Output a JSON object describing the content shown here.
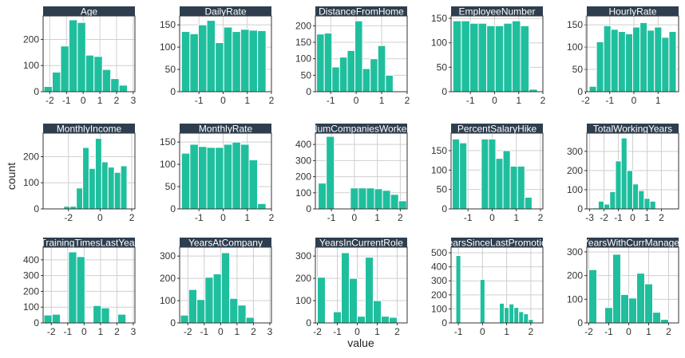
{
  "figure": {
    "xlabel": "value",
    "ylabel": "count",
    "bar_color": "#1fbf9e",
    "strip_color": "#2e3e4e",
    "strip_text_color": "#ffffff",
    "grid_color": "#cfcfcf"
  },
  "chart_data": [
    {
      "type": "bar",
      "title": "Age",
      "x": [
        -2.1,
        -1.6,
        -1.1,
        -0.6,
        -0.1,
        0.4,
        0.9,
        1.4,
        1.9,
        2.4,
        2.9
      ],
      "values": [
        20,
        75,
        175,
        275,
        265,
        140,
        135,
        85,
        50,
        25,
        0
      ],
      "xlim": [
        -2.4,
        3.1
      ],
      "ylim": [
        0,
        290
      ],
      "xticks": [
        -2,
        -1,
        0,
        1,
        2,
        3
      ],
      "yticks": [
        0,
        100,
        200
      ],
      "xticklabels": [
        "-2",
        "-1",
        "0",
        "1",
        "2",
        "3"
      ],
      "yticklabels": [
        "0",
        "100",
        "200"
      ]
    },
    {
      "type": "bar",
      "title": "DailyRate",
      "x": [
        -1.55,
        -1.2,
        -0.85,
        -0.5,
        -0.15,
        0.2,
        0.55,
        0.9,
        1.25,
        1.6
      ],
      "values": [
        135,
        130,
        150,
        160,
        110,
        145,
        135,
        140,
        138,
        137
      ],
      "xlim": [
        -1.8,
        2.0
      ],
      "ylim": [
        0,
        170
      ],
      "xticks": [
        -1,
        0,
        1,
        2
      ],
      "yticks": [
        0,
        50,
        100,
        150
      ],
      "xticklabels": [
        "-1",
        "0",
        "1",
        "2"
      ],
      "yticklabels": [
        "0",
        "50",
        "100",
        "150"
      ]
    },
    {
      "type": "bar",
      "title": "DistanceFromHome",
      "x": [
        -1.4,
        -1.1,
        -0.8,
        -0.5,
        -0.2,
        0.1,
        0.4,
        0.7,
        1.0,
        1.3,
        1.6,
        1.9
      ],
      "values": [
        175,
        178,
        75,
        105,
        125,
        215,
        70,
        100,
        140,
        50,
        0,
        0
      ],
      "xlim": [
        -1.6,
        2.0
      ],
      "ylim": [
        0,
        230
      ],
      "xticks": [
        -1,
        0,
        1,
        2
      ],
      "yticks": [
        0,
        50,
        100,
        150,
        200
      ],
      "xticklabels": [
        "-1",
        "0",
        "1",
        "2"
      ],
      "yticklabels": [
        "0",
        "50",
        "100",
        "150",
        "200"
      ]
    },
    {
      "type": "bar",
      "title": "EmployeeNumber",
      "x": [
        -1.55,
        -1.2,
        -0.85,
        -0.5,
        -0.15,
        0.2,
        0.55,
        0.9,
        1.25,
        1.6
      ],
      "values": [
        145,
        145,
        140,
        140,
        135,
        135,
        140,
        145,
        135,
        5
      ],
      "xlim": [
        -1.8,
        2.0
      ],
      "ylim": [
        0,
        155
      ],
      "xticks": [
        -1,
        0,
        1,
        2
      ],
      "yticks": [
        0,
        50,
        100,
        150
      ],
      "xticklabels": [
        "-1",
        "0",
        "1",
        "2"
      ],
      "yticklabels": [
        "0",
        "50",
        "100",
        "150"
      ]
    },
    {
      "type": "bar",
      "title": "HourlyRate",
      "x": [
        -1.7,
        -1.4,
        -1.1,
        -0.8,
        -0.5,
        -0.2,
        0.1,
        0.4,
        0.7,
        1.0,
        1.3,
        1.6
      ],
      "values": [
        12,
        112,
        148,
        140,
        135,
        130,
        145,
        155,
        138,
        145,
        122,
        135
      ],
      "xlim": [
        -1.95,
        1.85
      ],
      "ylim": [
        0,
        170
      ],
      "xticks": [
        -2,
        -1,
        0,
        1
      ],
      "yticks": [
        0,
        50,
        100,
        150
      ],
      "xticklabels": [
        "-2",
        "-1",
        "0",
        "1"
      ],
      "yticklabels": [
        "0",
        "50",
        "100",
        "150"
      ]
    },
    {
      "type": "bar",
      "title": "MonthlyIncome",
      "x": [
        -2.9,
        -2.5,
        -2.1,
        -1.7,
        -1.3,
        -0.9,
        -0.5,
        -0.1,
        0.3,
        0.7,
        1.1,
        1.5,
        1.9
      ],
      "values": [
        0,
        0,
        10,
        10,
        80,
        235,
        155,
        270,
        180,
        160,
        140,
        165,
        0
      ],
      "xlim": [
        -3.6,
        2.2
      ],
      "ylim": [
        0,
        290
      ],
      "xticks": [
        -2,
        0,
        2
      ],
      "yticks": [
        0,
        100,
        200
      ],
      "xticklabels": [
        "-2",
        "0",
        "2"
      ],
      "yticklabels": [
        "0",
        "100",
        "200"
      ]
    },
    {
      "type": "bar",
      "title": "MonthlyRate",
      "x": [
        -1.55,
        -1.2,
        -0.85,
        -0.5,
        -0.15,
        0.2,
        0.55,
        0.9,
        1.25,
        1.6
      ],
      "values": [
        125,
        145,
        140,
        138,
        138,
        145,
        150,
        145,
        110,
        12
      ],
      "xlim": [
        -1.8,
        2.0
      ],
      "ylim": [
        0,
        170
      ],
      "xticks": [
        -1,
        0,
        1,
        2
      ],
      "yticks": [
        0,
        50,
        100,
        150
      ],
      "xticklabels": [
        "-1",
        "0",
        "1",
        "2"
      ],
      "yticklabels": [
        "0",
        "50",
        "100",
        "150"
      ]
    },
    {
      "type": "bar",
      "title": "NumCompaniesWorked",
      "x": [
        -1.4,
        -1.05,
        -0.7,
        -0.35,
        0.0,
        0.35,
        0.7,
        1.05,
        1.4,
        1.75,
        2.1
      ],
      "values": [
        160,
        450,
        0,
        0,
        130,
        130,
        130,
        125,
        115,
        90,
        50
      ],
      "xlim": [
        -1.7,
        2.3
      ],
      "ylim": [
        0,
        470
      ],
      "xticks": [
        -1,
        0,
        1,
        2
      ],
      "yticks": [
        0,
        100,
        200,
        300,
        400
      ],
      "xticklabels": [
        "-1",
        "0",
        "1",
        "2"
      ],
      "yticklabels": [
        "0",
        "100",
        "200",
        "300",
        "400"
      ]
    },
    {
      "type": "bar",
      "title": "PercentSalaryHike",
      "x": [
        -1.5,
        -1.2,
        -0.9,
        -0.6,
        -0.3,
        0.0,
        0.3,
        0.6,
        0.9,
        1.2,
        1.5,
        1.8
      ],
      "values": [
        180,
        170,
        0,
        0,
        180,
        180,
        130,
        150,
        110,
        110,
        30,
        0
      ],
      "xlim": [
        -1.7,
        2.1
      ],
      "ylim": [
        0,
        195
      ],
      "xticks": [
        -1,
        0,
        1,
        2
      ],
      "yticks": [
        0,
        50,
        100,
        150
      ],
      "xticklabels": [
        "-1",
        "0",
        "1",
        "2"
      ],
      "yticklabels": [
        "0",
        "50",
        "100",
        "150"
      ]
    },
    {
      "type": "bar",
      "title": "TotalWorkingYears",
      "x": [
        -2.6,
        -2.2,
        -1.8,
        -1.4,
        -1.0,
        -0.6,
        -0.2,
        0.2,
        0.6,
        1.0,
        1.4,
        1.8,
        2.2,
        2.6,
        3.0
      ],
      "values": [
        5,
        40,
        25,
        90,
        250,
        370,
        200,
        130,
        95,
        55,
        40,
        0,
        0,
        0,
        0
      ],
      "xlim": [
        -3.2,
        3.2
      ],
      "ylim": [
        0,
        395
      ],
      "xticks": [
        -3,
        -2,
        -1,
        0,
        1,
        2
      ],
      "yticks": [
        0,
        100,
        200,
        300
      ],
      "xticklabels": [
        "-3",
        "-2",
        "-1",
        "0",
        "1",
        "2"
      ],
      "yticklabels": [
        "0",
        "100",
        "200",
        "300"
      ]
    },
    {
      "type": "bar",
      "title": "TrainingTimesLastYear",
      "x": [
        -2.2,
        -1.7,
        -1.2,
        -0.7,
        -0.2,
        0.3,
        0.8,
        1.3,
        1.8,
        2.3,
        2.8
      ],
      "values": [
        50,
        55,
        0,
        450,
        420,
        0,
        110,
        95,
        0,
        55,
        0
      ],
      "xlim": [
        -2.5,
        3.1
      ],
      "ylim": [
        0,
        480
      ],
      "xticks": [
        -2,
        -1,
        0,
        1,
        2,
        3
      ],
      "yticks": [
        0,
        100,
        200,
        300,
        400
      ],
      "xticklabels": [
        "-2",
        "-1",
        "0",
        "1",
        "2",
        "3"
      ],
      "yticklabels": [
        "0",
        "100",
        "200",
        "300",
        "400"
      ]
    },
    {
      "type": "bar",
      "title": "YearsAtCompany",
      "x": [
        -2.2,
        -1.7,
        -1.2,
        -0.7,
        -0.2,
        0.3,
        0.8,
        1.3,
        1.8,
        2.3,
        2.8
      ],
      "values": [
        35,
        150,
        105,
        205,
        220,
        315,
        110,
        80,
        25,
        0,
        0
      ],
      "xlim": [
        -2.5,
        3.1
      ],
      "ylim": [
        0,
        340
      ],
      "xticks": [
        -2,
        -1,
        0,
        1,
        2,
        3
      ],
      "yticks": [
        0,
        100,
        200,
        300
      ],
      "xticklabels": [
        "-2",
        "-1",
        "0",
        "1",
        "2",
        "3"
      ],
      "yticklabels": [
        "0",
        "100",
        "200",
        "300"
      ]
    },
    {
      "type": "bar",
      "title": "YearsInCurrentRole",
      "x": [
        -1.8,
        -1.4,
        -1.0,
        -0.6,
        -0.2,
        0.2,
        0.6,
        1.0,
        1.4,
        1.8,
        2.2
      ],
      "values": [
        205,
        0,
        50,
        315,
        200,
        30,
        295,
        100,
        30,
        25,
        0
      ],
      "xlim": [
        -2.1,
        2.5
      ],
      "ylim": [
        0,
        340
      ],
      "xticks": [
        -2,
        -1,
        0,
        1,
        2
      ],
      "yticks": [
        0,
        100,
        200,
        300
      ],
      "xticklabels": [
        "-2",
        "-1",
        "0",
        "1",
        "2"
      ],
      "yticklabels": [
        "0",
        "100",
        "200",
        "300"
      ]
    },
    {
      "type": "bar",
      "title": "YearsSinceLastPromotion",
      "x": [
        -1.0,
        -0.8,
        -0.6,
        -0.4,
        -0.2,
        0.0,
        0.2,
        0.4,
        0.6,
        0.8,
        1.0,
        1.2,
        1.4,
        1.6,
        1.8,
        2.0,
        2.2
      ],
      "values": [
        480,
        0,
        0,
        0,
        0,
        310,
        0,
        0,
        0,
        140,
        110,
        135,
        110,
        80,
        65,
        25,
        0
      ],
      "xlim": [
        -1.3,
        2.5
      ],
      "ylim": [
        0,
        540
      ],
      "xticks": [
        -1,
        0,
        1,
        2
      ],
      "yticks": [
        0,
        100,
        200,
        300,
        400,
        500
      ],
      "xticklabels": [
        "-1",
        "0",
        "1",
        "2"
      ],
      "yticklabels": [
        "0",
        "100",
        "200",
        "300",
        "400",
        "500"
      ]
    },
    {
      "type": "bar",
      "title": "YearsWithCurrManager",
      "x": [
        -1.8,
        -1.4,
        -1.0,
        -0.6,
        -0.2,
        0.2,
        0.6,
        1.0,
        1.4,
        1.8,
        2.2
      ],
      "values": [
        225,
        0,
        65,
        290,
        120,
        105,
        210,
        165,
        45,
        15,
        0
      ],
      "xlim": [
        -2.1,
        2.5
      ],
      "ylim": [
        0,
        320
      ],
      "xticks": [
        -2,
        -1,
        0,
        1,
        2
      ],
      "yticks": [
        0,
        100,
        200,
        300
      ],
      "xticklabels": [
        "-2",
        "-1",
        "0",
        "1",
        "2"
      ],
      "yticklabels": [
        "0",
        "100",
        "200",
        "300"
      ]
    }
  ]
}
